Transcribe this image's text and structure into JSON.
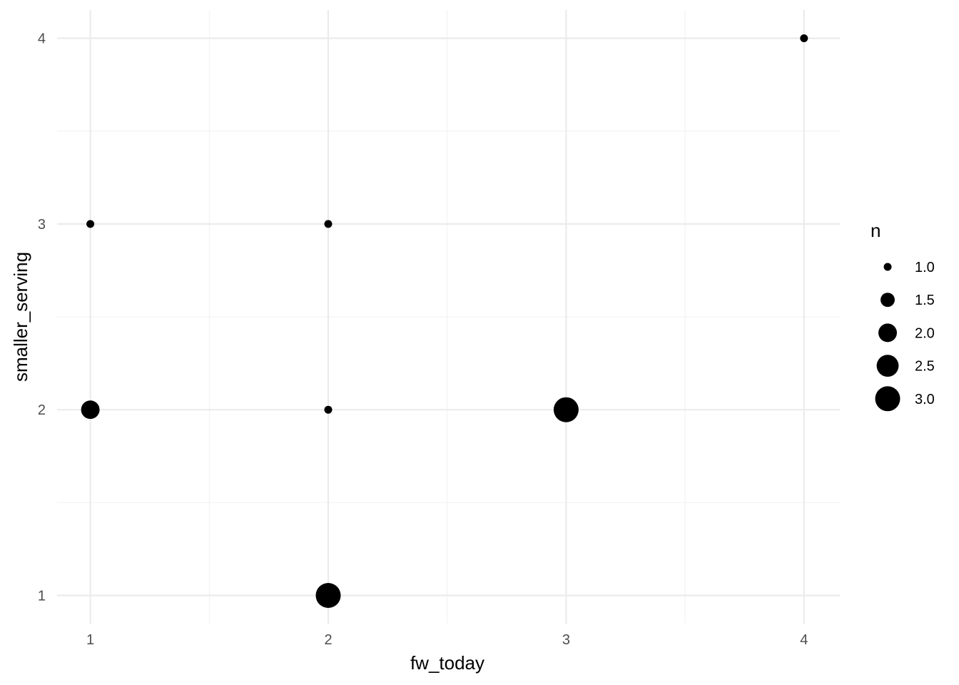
{
  "chart_data": {
    "type": "scatter",
    "xlabel": "fw_today",
    "ylabel": "smaller_serving",
    "x_ticks": [
      "1",
      "2",
      "3",
      "4"
    ],
    "y_ticks": [
      "1",
      "2",
      "3",
      "4"
    ],
    "xlim": [
      0.86,
      4.15
    ],
    "ylim": [
      0.85,
      4.15
    ],
    "grid": true,
    "legend": {
      "title": "n",
      "placement": "right",
      "entries": [
        {
          "label": "1.0",
          "value": 1.0
        },
        {
          "label": "1.5",
          "value": 1.5
        },
        {
          "label": "2.0",
          "value": 2.0
        },
        {
          "label": "2.5",
          "value": 2.5
        },
        {
          "label": "3.0",
          "value": 3.0
        }
      ]
    },
    "size_variable": "n",
    "points": [
      {
        "x": 1,
        "y": 3,
        "n": 1
      },
      {
        "x": 1,
        "y": 2,
        "n": 2
      },
      {
        "x": 2,
        "y": 3,
        "n": 1
      },
      {
        "x": 2,
        "y": 2,
        "n": 1
      },
      {
        "x": 2,
        "y": 1,
        "n": 3
      },
      {
        "x": 3,
        "y": 2,
        "n": 3
      },
      {
        "x": 4,
        "y": 4,
        "n": 1
      }
    ],
    "colors": {
      "point": "#000000",
      "grid_major": "#ebebeb",
      "grid_minor": "#f3f3f3",
      "tick_text": "#4d4d4d"
    }
  }
}
